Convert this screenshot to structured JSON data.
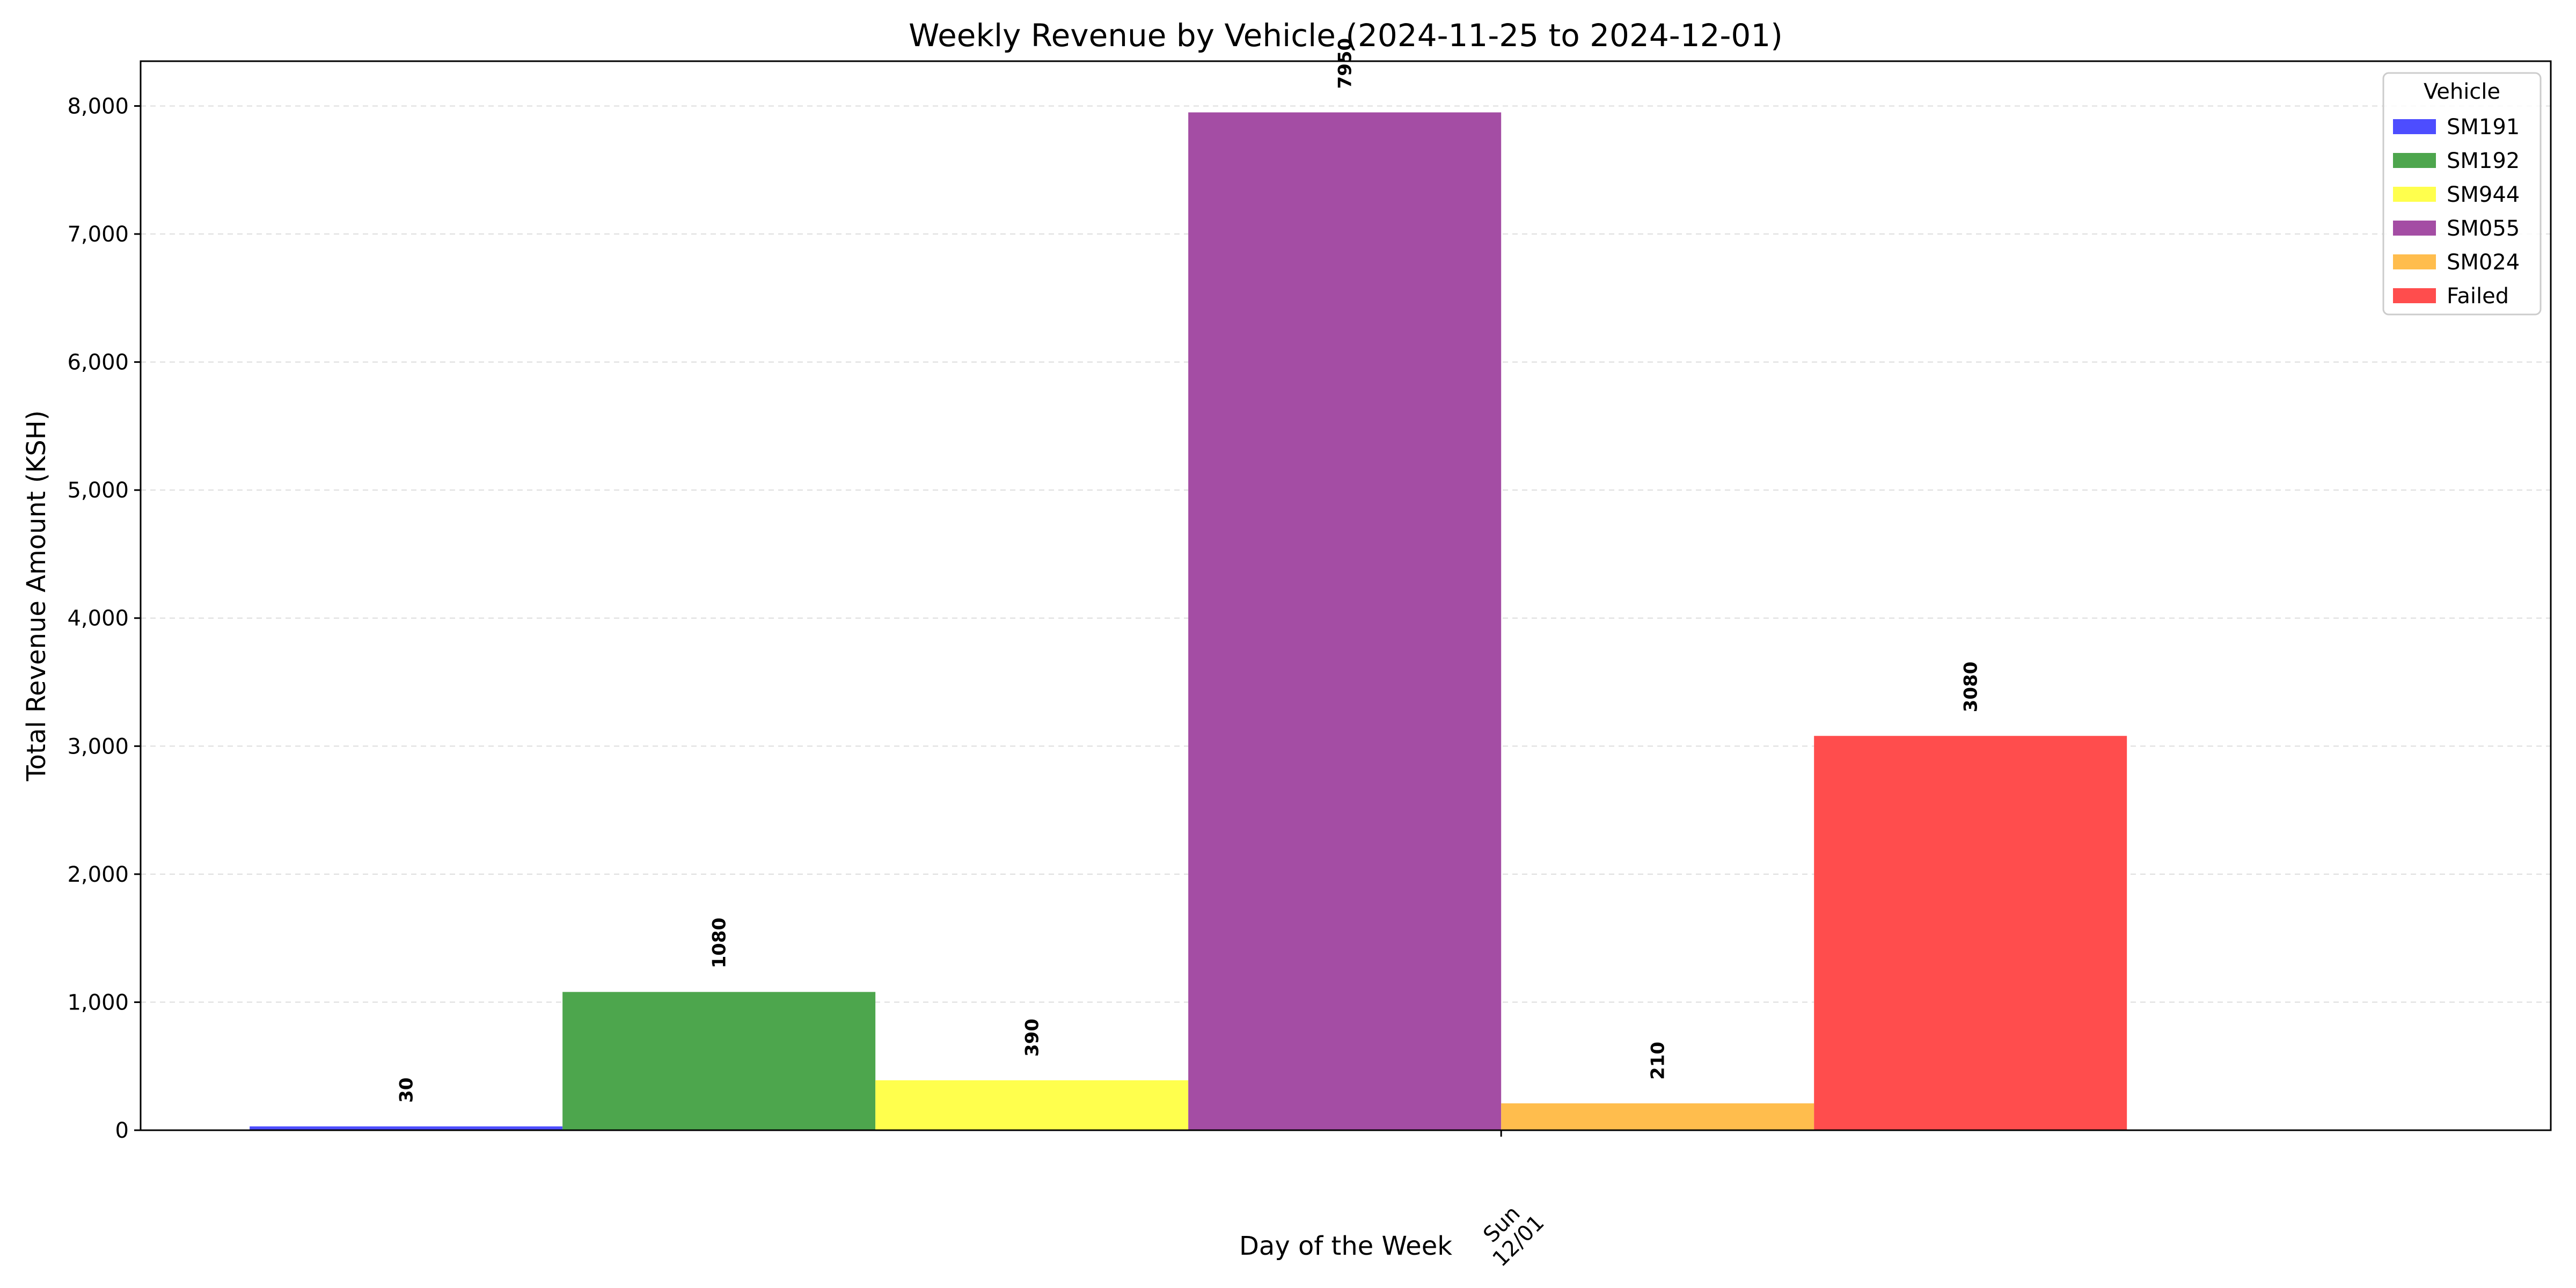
{
  "chart_data": {
    "type": "bar",
    "title": "Weekly Revenue by Vehicle (2024-11-25 to 2024-12-01)",
    "xlabel": "Day of the Week",
    "ylabel": "Total Revenue Amount (KSH)",
    "categories": [
      "Sun\n12/01"
    ],
    "ylim": [
      0,
      8350
    ],
    "yticks": [
      0,
      1000,
      2000,
      3000,
      4000,
      5000,
      6000,
      7000,
      8000
    ],
    "ytick_labels": [
      "0",
      "1,000",
      "2,000",
      "3,000",
      "4,000",
      "5,000",
      "6,000",
      "7,000",
      "8,000"
    ],
    "grid": "y-dashed",
    "legend_title": "Vehicle",
    "legend_position": "top-right",
    "series": [
      {
        "name": "SM191",
        "values": [
          30
        ],
        "label": "30",
        "color": "#4d4dff"
      },
      {
        "name": "SM192",
        "values": [
          1080
        ],
        "label": "1080",
        "color": "#4da64d"
      },
      {
        "name": "SM944",
        "values": [
          390
        ],
        "label": "390",
        "color": "#ffff4d"
      },
      {
        "name": "SM055",
        "values": [
          7950
        ],
        "label": "7950",
        "color": "#a44da4"
      },
      {
        "name": "SM024",
        "values": [
          210
        ],
        "label": "210",
        "color": "#ffbd4d"
      },
      {
        "name": "Failed",
        "values": [
          3080
        ],
        "label": "3080",
        "color": "#ff4d4d"
      }
    ]
  }
}
